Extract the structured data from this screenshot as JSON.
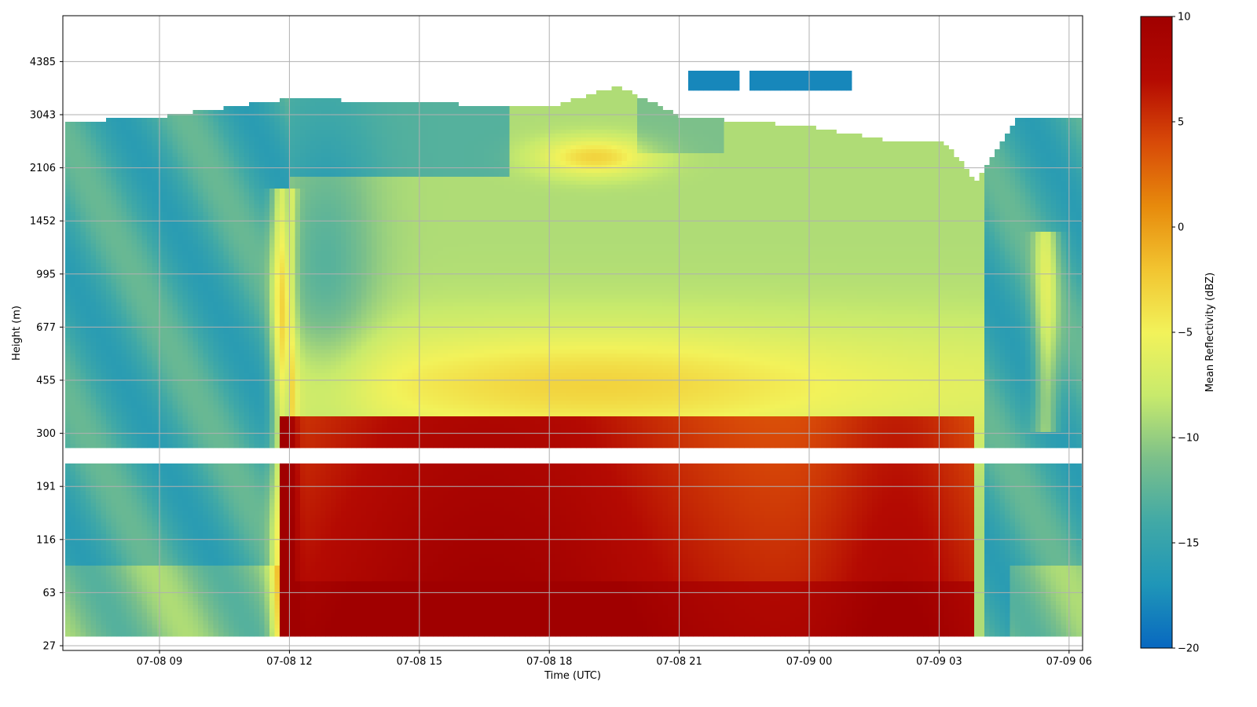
{
  "chart_data": {
    "type": "heatmap",
    "title": "",
    "xlabel": "Time (UTC)",
    "ylabel": "Height (m)",
    "x_ticks": [
      "07-08 09",
      "07-08 12",
      "07-08 15",
      "07-08 18",
      "07-08 21",
      "07-09 00",
      "07-09 03",
      "07-09 06"
    ],
    "y_ticks": [
      "27",
      "63",
      "116",
      "191",
      "300",
      "455",
      "677",
      "995",
      "1452",
      "2106",
      "3043",
      "4385"
    ],
    "x_range_hours": [
      6.8,
      30.3
    ],
    "y_scale": "nonlinear (tick-indexed)",
    "grid": true,
    "colorbar": {
      "label": "Mean Reflectivity (dBZ)",
      "min": -20,
      "max": 10,
      "ticks": [
        "10",
        "5",
        "0",
        "−5",
        "−10",
        "−15",
        "−20"
      ],
      "colormap": [
        "#0868c0",
        "#1f96b8",
        "#41a9a6",
        "#7cc08a",
        "#c8ea6c",
        "#f2f25a",
        "#f2c430",
        "#e78a0c",
        "#d84a08",
        "#b40a02",
        "#a00000"
      ]
    },
    "features": [
      {
        "desc": "top of detected echo (m)",
        "x_hours": [
          6.9,
          9,
          12,
          15,
          18,
          19.5,
          21,
          24,
          26,
          27,
          27.8,
          28.8,
          30.2
        ],
        "values": [
          2900,
          3000,
          3400,
          3300,
          3200,
          3700,
          3000,
          2800,
          2500,
          2550,
          1900,
          3000,
          3000
        ]
      },
      {
        "desc": "strong echo layer 36-240 m, max reflectivity (dBZ)",
        "time_range_hours": [
          11.7,
          27.7
        ],
        "peak_dbz": 9
      },
      {
        "desc": "weak elevated echo ~3600-4100 m",
        "time_range_hours": [
          21.1,
          24.9
        ],
        "dbz": -18
      }
    ]
  }
}
